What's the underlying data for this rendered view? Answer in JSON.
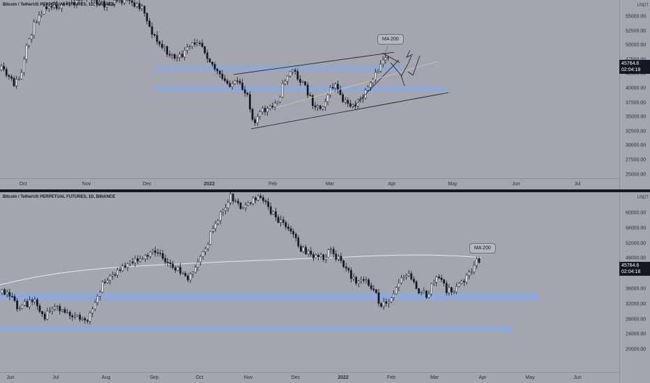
{
  "top_chart": {
    "title": "Bitcoin / TetherUS PERPETUAL FUTURES, 1D, BINANCE",
    "currency": "USDT",
    "price_ticks": [
      "55000.00",
      "52500.00",
      "50000.00",
      "47500.00",
      "42500.00",
      "40000.00",
      "37500.00",
      "35000.00",
      "32500.00",
      "30000.00",
      "27500.00",
      "25000.00"
    ],
    "time_ticks": [
      {
        "label": "Oct",
        "bold": false
      },
      {
        "label": "Nov",
        "bold": false
      },
      {
        "label": "Dec",
        "bold": false
      },
      {
        "label": "2022",
        "bold": true
      },
      {
        "label": "Feb",
        "bold": false
      },
      {
        "label": "Mar",
        "bold": false
      },
      {
        "label": "Apr",
        "bold": false
      },
      {
        "label": "May",
        "bold": false
      },
      {
        "label": "Jun",
        "bold": false
      },
      {
        "label": "Jul",
        "bold": false
      }
    ],
    "last_price": "45764.6",
    "countdown": "02:04:18",
    "callout": "MA 200"
  },
  "bottom_chart": {
    "title": "Bitcoin / TetherUS PERPETUAL FUTURES, 1D, BINANCE",
    "currency": "USDT",
    "price_ticks": [
      "60000.00",
      "56000.00",
      "52000.00",
      "48000.00",
      "40000.00",
      "36000.00",
      "32000.00",
      "28000.00",
      "24000.00",
      "20000.00"
    ],
    "time_ticks": [
      {
        "label": "Jun",
        "bold": false
      },
      {
        "label": "Jul",
        "bold": false
      },
      {
        "label": "Aug",
        "bold": false
      },
      {
        "label": "Sep",
        "bold": false
      },
      {
        "label": "Oct",
        "bold": false
      },
      {
        "label": "Nov",
        "bold": false
      },
      {
        "label": "Dec",
        "bold": false
      },
      {
        "label": "2022",
        "bold": true
      },
      {
        "label": "Feb",
        "bold": false
      },
      {
        "label": "Mar",
        "bold": false
      },
      {
        "label": "Apr",
        "bold": false
      },
      {
        "label": "May",
        "bold": false
      },
      {
        "label": "Jun",
        "bold": false
      }
    ],
    "last_price": "45764.6",
    "countdown": "02:04:18",
    "callout": "MA 200"
  },
  "colors": {
    "zone": "#8fa8d8",
    "up": "#ffffff",
    "down": "#131722",
    "ma": "#e8e8e8"
  }
}
